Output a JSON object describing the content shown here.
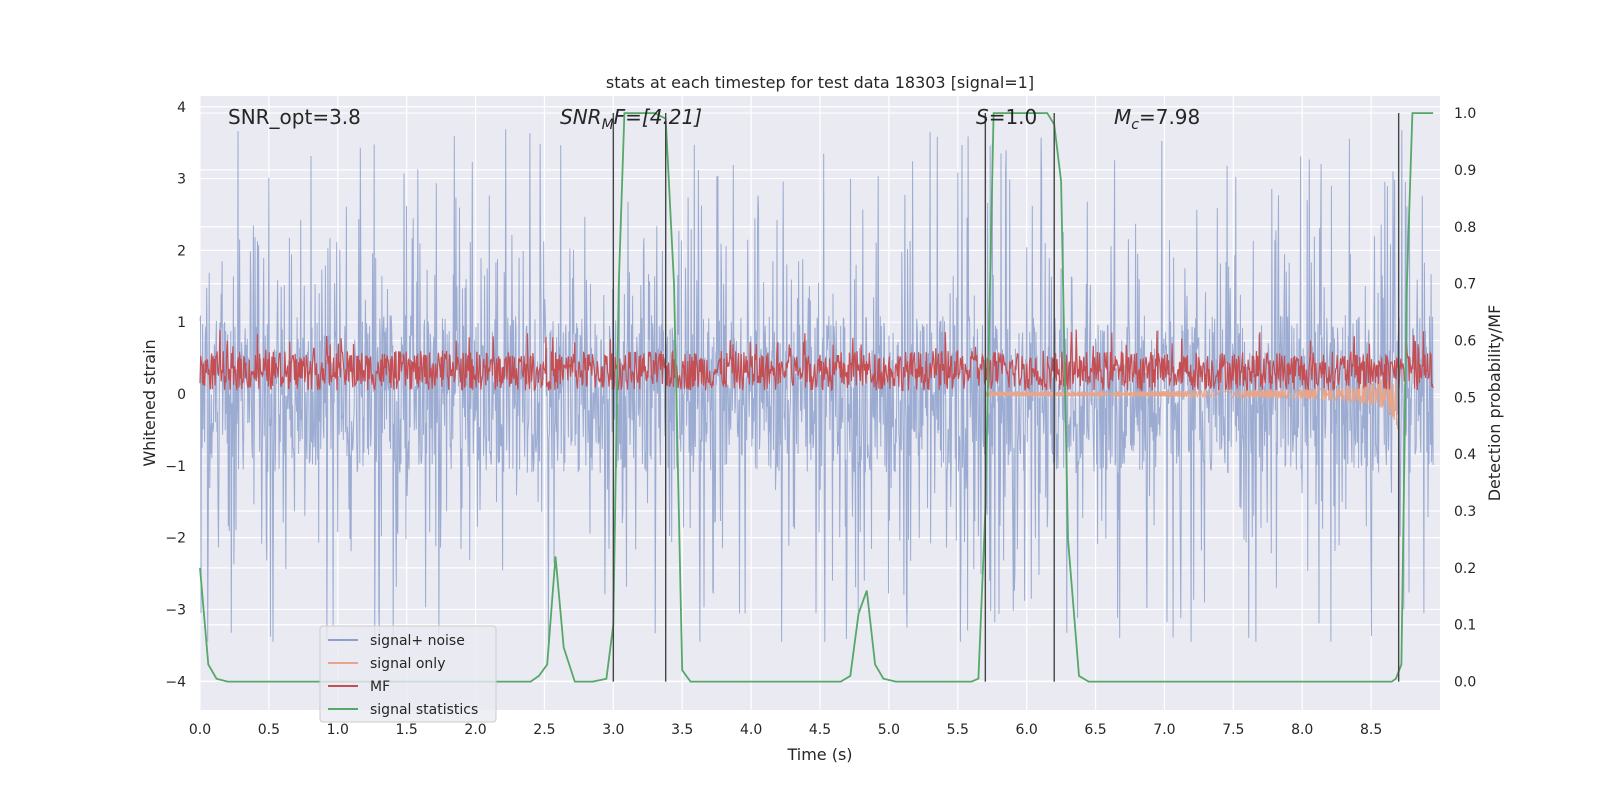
{
  "chart_data": {
    "type": "line",
    "title": "stats at each timestep for test data 18303 [signal=1]",
    "xlabel": "Time (s)",
    "ylabel_left": "Whitened strain",
    "ylabel_right": "Detection probability/MF",
    "xlim": [
      0.0,
      9.0
    ],
    "ylim_left": [
      -4.4,
      4.15
    ],
    "ylim_right": [
      -0.05,
      1.03
    ],
    "xticks": [
      "0.0",
      "0.5",
      "1.0",
      "1.5",
      "2.0",
      "2.5",
      "3.0",
      "3.5",
      "4.0",
      "4.5",
      "5.0",
      "5.5",
      "6.0",
      "6.5",
      "7.0",
      "7.5",
      "8.0",
      "8.5"
    ],
    "yticks_left": [
      "4",
      "3",
      "2",
      "1",
      "0",
      "−1",
      "−2",
      "−3",
      "−4"
    ],
    "yticks_right": [
      "1.0",
      "0.9",
      "0.8",
      "0.7",
      "0.6",
      "0.5",
      "0.4",
      "0.3",
      "0.2",
      "0.1",
      "0.0"
    ],
    "grid": true,
    "legend_position": "lower-left",
    "annotations": [
      {
        "id": "snr-opt",
        "text": "SNR_opt=3.8"
      },
      {
        "id": "snr-mf",
        "main": "SNR",
        "sub": "M",
        "rest": "F=[4.21]"
      },
      {
        "id": "s-value",
        "main": "S",
        "rest": "=1.0"
      },
      {
        "id": "mc-value",
        "main": "M",
        "sub": "c",
        "rest": "=7.98"
      }
    ],
    "series": [
      {
        "name": "signal+ noise",
        "color": "#8da0cb",
        "axis": "left",
        "description_range": [
          -3.0,
          3.8
        ]
      },
      {
        "name": "signal only",
        "color": "#e8a58a",
        "axis": "left"
      },
      {
        "name": "MF",
        "color": "#c44e52",
        "axis": "left"
      },
      {
        "name": "signal statistics",
        "color": "#55a868",
        "axis": "right",
        "points": [
          [
            0.0,
            0.2
          ],
          [
            0.06,
            0.03
          ],
          [
            0.12,
            0.005
          ],
          [
            0.2,
            0.0
          ],
          [
            2.4,
            0.0
          ],
          [
            2.46,
            0.01
          ],
          [
            2.52,
            0.03
          ],
          [
            2.58,
            0.22
          ],
          [
            2.64,
            0.06
          ],
          [
            2.72,
            0.0
          ],
          [
            2.85,
            0.0
          ],
          [
            2.95,
            0.005
          ],
          [
            3.0,
            0.1
          ],
          [
            3.04,
            0.7
          ],
          [
            3.08,
            1.0
          ],
          [
            3.3,
            1.0
          ],
          [
            3.38,
            0.99
          ],
          [
            3.44,
            0.7
          ],
          [
            3.5,
            0.02
          ],
          [
            3.56,
            0.0
          ],
          [
            4.65,
            0.0
          ],
          [
            4.72,
            0.01
          ],
          [
            4.78,
            0.12
          ],
          [
            4.84,
            0.16
          ],
          [
            4.9,
            0.03
          ],
          [
            4.96,
            0.005
          ],
          [
            5.05,
            0.0
          ],
          [
            5.6,
            0.0
          ],
          [
            5.65,
            0.005
          ],
          [
            5.7,
            0.3
          ],
          [
            5.76,
            1.0
          ],
          [
            6.15,
            1.0
          ],
          [
            6.2,
            0.98
          ],
          [
            6.25,
            0.88
          ],
          [
            6.3,
            0.25
          ],
          [
            6.38,
            0.01
          ],
          [
            6.45,
            0.0
          ],
          [
            8.65,
            0.0
          ],
          [
            8.68,
            0.005
          ],
          [
            8.72,
            0.03
          ],
          [
            8.76,
            0.7
          ],
          [
            8.8,
            1.0
          ],
          [
            8.95,
            1.0
          ]
        ]
      }
    ],
    "vertical_lines": [
      3.0,
      3.38,
      5.7,
      6.2,
      8.7
    ]
  }
}
